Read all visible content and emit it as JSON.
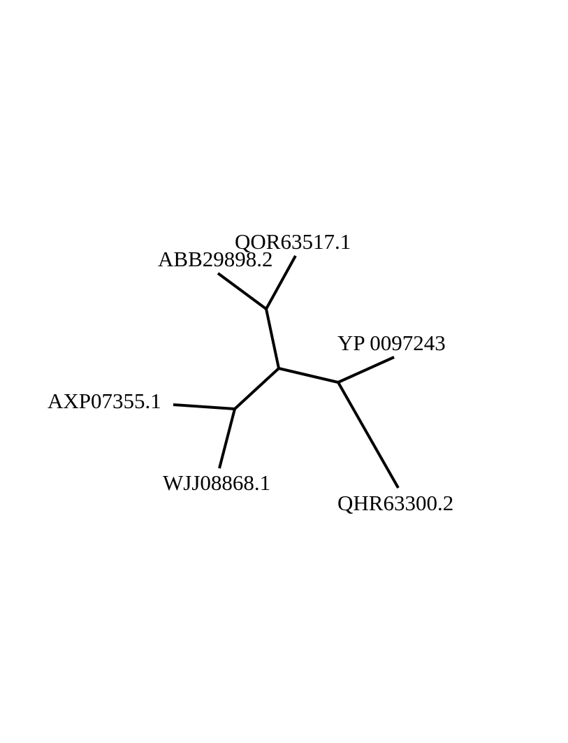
{
  "figure": {
    "type": "unrooted phylogenetic tree",
    "line_color": "#000000",
    "background": "#ffffff"
  },
  "taxa": [
    {
      "id": "qor",
      "label": "QOR63517.1"
    },
    {
      "id": "abb",
      "label": "ABB29898.2"
    },
    {
      "id": "yp",
      "label": "YP 0097243"
    },
    {
      "id": "axp",
      "label": "AXP07355.1"
    },
    {
      "id": "wjj",
      "label": "WJJ08868.1"
    },
    {
      "id": "qhr",
      "label": "QHR63300.2"
    }
  ],
  "topology": {
    "internal_nodes": [
      "center",
      "upper",
      "left",
      "right"
    ],
    "edges": [
      {
        "from": "center",
        "to": "upper"
      },
      {
        "from": "upper",
        "to": "abb"
      },
      {
        "from": "upper",
        "to": "qor"
      },
      {
        "from": "center",
        "to": "left"
      },
      {
        "from": "left",
        "to": "axp"
      },
      {
        "from": "left",
        "to": "wjj"
      },
      {
        "from": "center",
        "to": "right"
      },
      {
        "from": "right",
        "to": "yp"
      },
      {
        "from": "right",
        "to": "qhr"
      }
    ]
  }
}
